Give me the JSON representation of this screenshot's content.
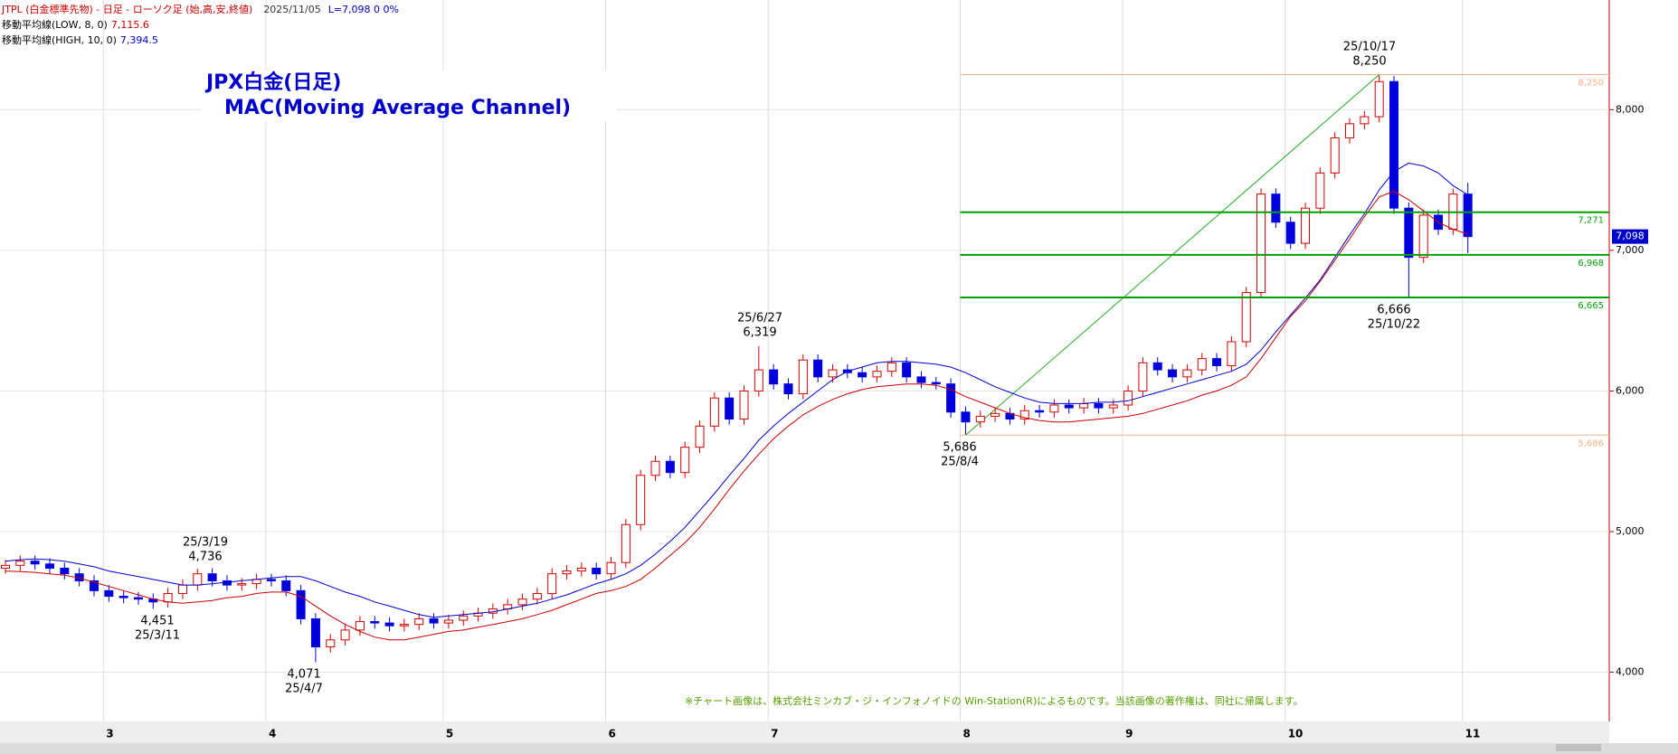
{
  "header": {
    "title": "JTPL (白金標準先物) - 日足 - ローソク足 (始,高,安,終値)",
    "date": "2025/11/05",
    "status": "L=7,098 0  0%"
  },
  "chart_data": {
    "type": "candlestick",
    "title": "JPX白金(日足)",
    "subtitle": "MAC(Moving Average Channel)",
    "categories": [
      null,
      null,
      null,
      null,
      null,
      null,
      null,
      "3",
      null,
      null,
      null,
      null,
      null,
      null,
      null,
      null,
      null,
      null,
      "4",
      null,
      null,
      null,
      null,
      null,
      null,
      null,
      null,
      null,
      null,
      null,
      "5",
      null,
      null,
      null,
      null,
      null,
      null,
      null,
      null,
      null,
      null,
      "6",
      null,
      null,
      null,
      null,
      null,
      null,
      null,
      null,
      null,
      null,
      "7",
      null,
      null,
      null,
      null,
      null,
      null,
      null,
      null,
      null,
      null,
      null,
      null,
      "8",
      null,
      null,
      null,
      null,
      null,
      null,
      null,
      null,
      null,
      null,
      "9",
      null,
      null,
      null,
      null,
      null,
      null,
      null,
      null,
      null,
      null,
      "10",
      null,
      null,
      null,
      null,
      null,
      null,
      null,
      null,
      null,
      null,
      null,
      "11"
    ],
    "open": [
      4740,
      4760,
      4790,
      4770,
      4740,
      4700,
      4650,
      4580,
      4540,
      4530,
      4520,
      4500,
      4560,
      4620,
      4700,
      4650,
      4620,
      4630,
      4660,
      4650,
      4580,
      4380,
      4180,
      4230,
      4300,
      4360,
      4350,
      4330,
      4340,
      4380,
      4350,
      4370,
      4400,
      4420,
      4450,
      4480,
      4520,
      4560,
      4700,
      4720,
      4740,
      4700,
      4780,
      5050,
      5400,
      5500,
      5420,
      5600,
      5750,
      5950,
      5800,
      6000,
      6150,
      6050,
      5980,
      6220,
      6100,
      6150,
      6130,
      6100,
      6140,
      6200,
      6100,
      6060,
      6050,
      5850,
      5780,
      5820,
      5840,
      5800,
      5860,
      5850,
      5900,
      5880,
      5910,
      5880,
      5900,
      6000,
      6200,
      6150,
      6100,
      6150,
      6230,
      6180,
      6350,
      6700,
      7400,
      7200,
      7050,
      7300,
      7550,
      7800,
      7900,
      7950,
      8200,
      7300,
      6950,
      7250,
      7150,
      7400
    ],
    "high": [
      4800,
      4830,
      4830,
      4810,
      4780,
      4740,
      4690,
      4620,
      4580,
      4570,
      4560,
      4600,
      4660,
      4736,
      4740,
      4690,
      4670,
      4700,
      4700,
      4690,
      4620,
      4420,
      4270,
      4340,
      4400,
      4400,
      4390,
      4380,
      4420,
      4420,
      4410,
      4440,
      4460,
      4490,
      4520,
      4560,
      4600,
      4740,
      4760,
      4780,
      4780,
      4820,
      5090,
      5440,
      5540,
      5540,
      5640,
      5790,
      5990,
      5990,
      6040,
      6319,
      6190,
      6090,
      6260,
      6260,
      6190,
      6190,
      6170,
      6180,
      6240,
      6240,
      6140,
      6100,
      6090,
      5890,
      5860,
      5880,
      5880,
      5900,
      5900,
      5940,
      5940,
      5950,
      5950,
      5940,
      6040,
      6240,
      6240,
      6190,
      6190,
      6270,
      6270,
      6390,
      6740,
      7440,
      7440,
      7240,
      7340,
      7590,
      7840,
      7940,
      7990,
      8250,
      8240,
      7340,
      7290,
      7290,
      7440,
      7480
    ],
    "low": [
      4700,
      4720,
      4730,
      4700,
      4660,
      4610,
      4540,
      4500,
      4490,
      4480,
      4451,
      4460,
      4520,
      4580,
      4610,
      4580,
      4580,
      4590,
      4610,
      4540,
      4340,
      4071,
      4140,
      4190,
      4260,
      4310,
      4290,
      4290,
      4300,
      4310,
      4310,
      4330,
      4360,
      4380,
      4410,
      4440,
      4480,
      4520,
      4660,
      4680,
      4660,
      4660,
      4740,
      5010,
      5360,
      5380,
      5380,
      5560,
      5710,
      5760,
      5760,
      5960,
      6010,
      5940,
      5940,
      6060,
      6060,
      6090,
      6060,
      6060,
      6100,
      6060,
      6020,
      6010,
      5810,
      5686,
      5740,
      5780,
      5760,
      5760,
      5810,
      5810,
      5840,
      5840,
      5840,
      5840,
      5860,
      5960,
      6110,
      6060,
      6060,
      6110,
      6140,
      6140,
      6310,
      6660,
      7160,
      7010,
      7010,
      7260,
      7510,
      7760,
      7860,
      7910,
      7260,
      6666,
      6910,
      7110,
      7110,
      6980
    ],
    "close": [
      4760,
      4790,
      4770,
      4740,
      4700,
      4650,
      4580,
      4540,
      4530,
      4520,
      4500,
      4560,
      4620,
      4700,
      4650,
      4620,
      4630,
      4660,
      4650,
      4580,
      4380,
      4180,
      4230,
      4300,
      4360,
      4350,
      4330,
      4340,
      4380,
      4350,
      4370,
      4400,
      4420,
      4450,
      4480,
      4520,
      4560,
      4700,
      4720,
      4740,
      4700,
      4780,
      5050,
      5400,
      5500,
      5420,
      5600,
      5750,
      5950,
      5800,
      6000,
      6150,
      6050,
      5980,
      6220,
      6100,
      6150,
      6130,
      6100,
      6140,
      6200,
      6100,
      6060,
      6050,
      5850,
      5780,
      5820,
      5840,
      5800,
      5860,
      5850,
      5900,
      5880,
      5910,
      5880,
      5900,
      6000,
      6200,
      6150,
      6100,
      6150,
      6230,
      6180,
      6350,
      6700,
      7400,
      7200,
      7050,
      7300,
      7550,
      7800,
      7900,
      7950,
      8200,
      7300,
      6950,
      7250,
      7150,
      7400,
      7098
    ],
    "up_color": "#d40000",
    "down_color": "#0000dd",
    "series": [
      {
        "name": "移動平均線(LOW, 8, 0)",
        "last_label": "7,115.6",
        "color": "#cc0000",
        "values": [
          4720,
          4715,
          4710,
          4700,
          4690,
          4670,
          4640,
          4610,
          4580,
          4550,
          4520,
          4500,
          4490,
          4500,
          4510,
          4530,
          4540,
          4560,
          4570,
          4570,
          4540,
          4470,
          4400,
          4340,
          4290,
          4250,
          4230,
          4230,
          4250,
          4270,
          4290,
          4300,
          4320,
          4340,
          4360,
          4380,
          4410,
          4440,
          4480,
          4520,
          4560,
          4580,
          4610,
          4660,
          4740,
          4830,
          4920,
          5030,
          5160,
          5300,
          5430,
          5550,
          5660,
          5750,
          5830,
          5890,
          5940,
          5980,
          6010,
          6030,
          6040,
          6050,
          6050,
          6040,
          6010,
          5960,
          5920,
          5880,
          5840,
          5810,
          5790,
          5780,
          5780,
          5790,
          5800,
          5810,
          5820,
          5840,
          5870,
          5900,
          5930,
          5970,
          6000,
          6040,
          6100,
          6230,
          6380,
          6530,
          6640,
          6780,
          6930,
          7080,
          7240,
          7380,
          7420,
          7360,
          7280,
          7200,
          7150,
          7115.6
        ]
      },
      {
        "name": "移動平均線(HIGH, 10, 0)",
        "last_label": "7,394.5",
        "color": "#0000cc",
        "values": [
          4790,
          4800,
          4805,
          4800,
          4790,
          4770,
          4750,
          4720,
          4700,
          4680,
          4660,
          4640,
          4620,
          4620,
          4630,
          4640,
          4650,
          4660,
          4670,
          4680,
          4680,
          4650,
          4610,
          4570,
          4540,
          4500,
          4470,
          4440,
          4410,
          4390,
          4400,
          4410,
          4420,
          4430,
          4450,
          4470,
          4490,
          4520,
          4550,
          4590,
          4630,
          4660,
          4700,
          4760,
          4840,
          4930,
          5030,
          5150,
          5270,
          5400,
          5520,
          5650,
          5750,
          5840,
          5920,
          6000,
          6080,
          6140,
          6170,
          6200,
          6210,
          6210,
          6200,
          6190,
          6170,
          6130,
          6080,
          6030,
          5990,
          5950,
          5920,
          5910,
          5910,
          5910,
          5920,
          5920,
          5930,
          5960,
          5990,
          6020,
          6050,
          6080,
          6110,
          6140,
          6190,
          6290,
          6420,
          6540,
          6660,
          6790,
          6950,
          7110,
          7260,
          7430,
          7560,
          7620,
          7600,
          7550,
          7460,
          7394.5
        ]
      }
    ],
    "ylim": [
      3650,
      8780
    ],
    "yticks": [
      {
        "value": 4000,
        "label": "4,000"
      },
      {
        "value": 5000,
        "label": "5,000"
      },
      {
        "value": 6000,
        "label": "6,000"
      },
      {
        "value": 7000,
        "label": "7,000"
      },
      {
        "value": 8000,
        "label": "8,000"
      }
    ],
    "grid": true,
    "levels": [
      {
        "value": 8250,
        "label": "8,250",
        "color": "#f4b183"
      },
      {
        "value": 7271,
        "label": "7,271",
        "color": "#00a000"
      },
      {
        "value": 6968,
        "label": "6,968",
        "color": "#00a000"
      },
      {
        "value": 6665,
        "label": "6,665",
        "color": "#00a000"
      },
      {
        "value": 5686,
        "label": "5,686",
        "color": "#f4b183"
      }
    ],
    "trendline": {
      "from": [
        65,
        5686
      ],
      "to": [
        93,
        8250
      ],
      "color": "#22aa22"
    },
    "last_price": {
      "value": 7098,
      "label": "7,098"
    },
    "annotations": [
      {
        "lines": [
          "25/10/17",
          "8,250"
        ]
      },
      {
        "lines": [
          "25/6/27",
          "6,319"
        ]
      },
      {
        "lines": [
          "25/3/19",
          "4,736"
        ]
      },
      {
        "lines": [
          "4,451",
          "25/3/11"
        ]
      },
      {
        "lines": [
          "4,071",
          "25/4/7"
        ]
      },
      {
        "lines": [
          "5,686",
          "25/8/4"
        ]
      },
      {
        "lines": [
          "6,666",
          "25/10/22"
        ]
      }
    ],
    "note": "※チャート画像は、株式会社ミンカブ・ジ・インフォノイドの Win-Station(R)によるものです。当該画像の著作権は、同社に帰属します。"
  }
}
